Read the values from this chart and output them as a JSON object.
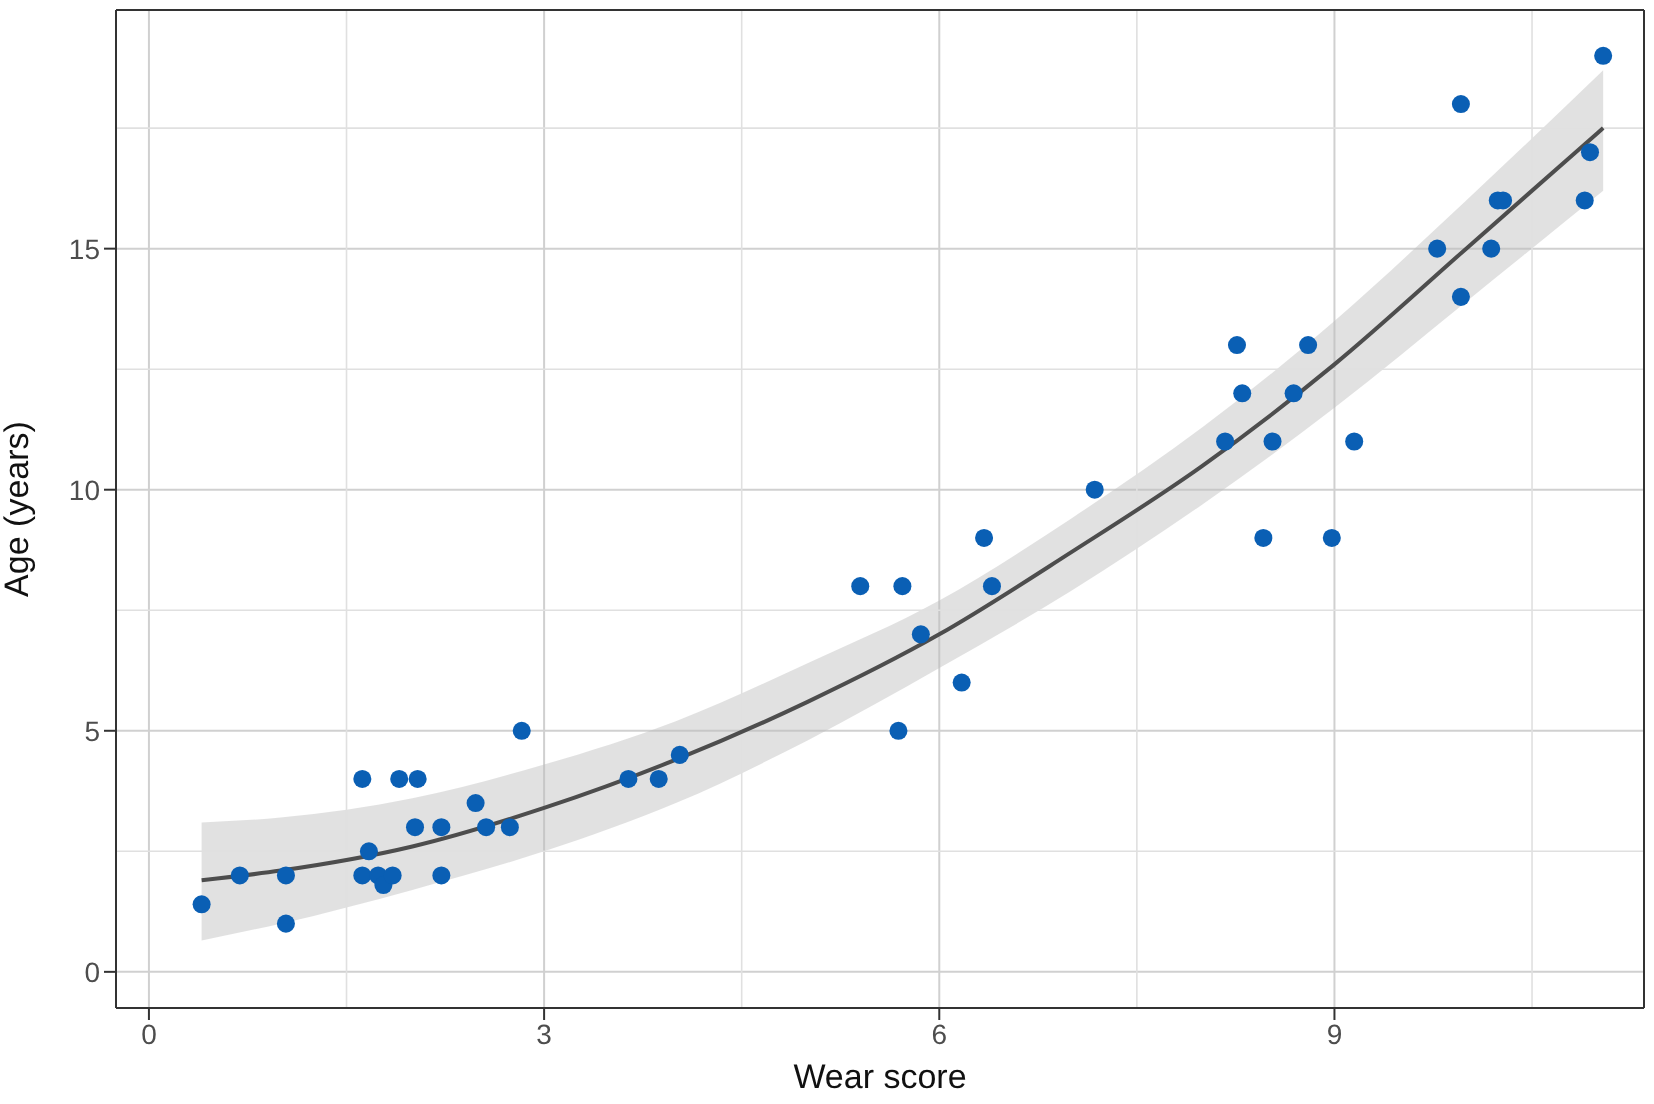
{
  "chart_data": {
    "type": "scatter",
    "xlabel": "Wear score",
    "ylabel": "Age (years)",
    "xlim": [
      -0.25,
      11.35
    ],
    "ylim": [
      -0.75,
      19.95
    ],
    "xticks": [
      0,
      3,
      6,
      9
    ],
    "yticks": [
      0,
      5,
      10,
      15
    ],
    "grid": true,
    "series": [
      {
        "type": "line",
        "marker": "none",
        "color": "#4d4d4d",
        "x": [
          0.4,
          1,
          2,
          3,
          4,
          5,
          6,
          7,
          8,
          9,
          10,
          11.04
        ],
        "values": [
          1.9,
          2.1,
          2.6,
          3.4,
          4.4,
          5.6,
          7.0,
          8.7,
          10.5,
          12.6,
          15.0,
          17.5
        ],
        "lower": [
          0.65,
          1.0,
          1.7,
          2.5,
          3.5,
          4.8,
          6.3,
          7.9,
          9.7,
          11.7,
          13.9,
          16.2
        ],
        "upper": [
          3.1,
          3.2,
          3.6,
          4.3,
          5.2,
          6.4,
          7.7,
          9.4,
          11.3,
          13.5,
          16.0,
          18.7
        ]
      },
      {
        "marker": "circle",
        "color": "#0a5fb4",
        "x": [
          0.4,
          0.69,
          1.04,
          1.04,
          1.62,
          1.62,
          1.67,
          1.74,
          1.78,
          1.85,
          1.9,
          2.04,
          2.02,
          2.22,
          2.22,
          2.48,
          2.56,
          2.74,
          2.83,
          3.64,
          3.87,
          4.03,
          5.4,
          5.72,
          5.69,
          5.86,
          6.17,
          6.34,
          6.4,
          7.18,
          8.17,
          8.26,
          8.3,
          8.46,
          8.53,
          8.69,
          8.8,
          8.98,
          9.15,
          9.78,
          9.96,
          9.96,
          10.19,
          10.24,
          10.28,
          10.9,
          10.94,
          11.04
        ],
        "values": [
          1.4,
          2,
          2,
          1,
          4,
          2,
          2.5,
          2,
          1.8,
          2,
          4,
          4,
          3,
          3,
          2,
          3.5,
          3,
          3,
          5,
          4,
          4,
          4.5,
          8,
          8,
          5,
          7,
          6,
          9,
          8,
          10,
          11,
          13,
          12,
          9,
          11,
          12,
          13,
          9,
          11,
          15,
          18,
          14,
          15,
          16,
          16,
          16,
          17,
          19
        ]
      }
    ]
  }
}
